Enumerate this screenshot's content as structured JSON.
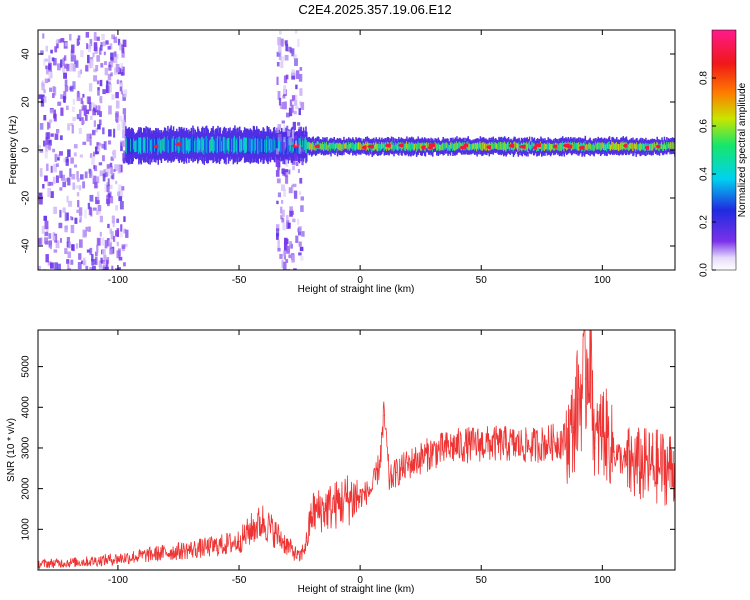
{
  "title": "C2E4.2025.357.19.06.E12",
  "chart_data": [
    {
      "type": "heatmap",
      "xlabel": "Height of straight line (km)",
      "ylabel": "Frequency (Hz)",
      "xlim": [
        -133,
        130
      ],
      "ylim": [
        -50,
        50
      ],
      "xticks": [
        -100,
        -50,
        0,
        50,
        100
      ],
      "yticks": [
        -40,
        -20,
        0,
        20,
        40
      ],
      "colorbar": {
        "label": "Normalized spectral amplitude",
        "ticks": [
          "0.0",
          "0.2",
          "0.4",
          "0.6",
          "0.8"
        ],
        "tick_values": [
          0.0,
          0.2,
          0.4,
          0.6,
          0.8
        ],
        "range": [
          0,
          1
        ],
        "colormap": "rainbow: white-violet-blue-cyan-green-yellow-red-magenta"
      },
      "bands": [
        {
          "x": [
            -133,
            -97
          ],
          "freq_center": 0,
          "freq_halfwidth": 50,
          "amplitude": 0.05,
          "note": "diffuse noise"
        },
        {
          "x": [
            -97,
            -22
          ],
          "freq_center": 2,
          "freq_halfwidth": 6,
          "amplitude": 0.35
        },
        {
          "x": [
            -35,
            -24
          ],
          "freq_center": 0,
          "freq_halfwidth": 50,
          "amplitude": 0.05
        },
        {
          "x": [
            -22,
            130
          ],
          "freq_center": 1.5,
          "freq_halfwidth": 3,
          "amplitude": 0.55
        }
      ]
    },
    {
      "type": "line",
      "xlabel": "Height of straight line (km)",
      "ylabel": "SNR (10 * v/v)",
      "xlim": [
        -133,
        130
      ],
      "ylim": [
        0,
        5900
      ],
      "xticks": [
        -100,
        -50,
        0,
        50,
        100
      ],
      "yticks": [
        1000,
        2000,
        3000,
        4000,
        5000
      ],
      "color": "#ee3333",
      "series": [
        {
          "x": [
            -133,
            -120,
            -110,
            -100,
            -90,
            -80,
            -70,
            -60,
            -50,
            -45,
            -40,
            -35,
            -30,
            -25,
            -22,
            -20,
            -15,
            -10,
            -5,
            0,
            5,
            8,
            10,
            12,
            15,
            20,
            25,
            30,
            40,
            50,
            60,
            70,
            80,
            85,
            88,
            90,
            93,
            95,
            97,
            100,
            105,
            110,
            120,
            130
          ],
          "values": [
            150,
            180,
            220,
            280,
            350,
            430,
            500,
            580,
            700,
            1000,
            1200,
            900,
            600,
            300,
            700,
            1400,
            1500,
            1600,
            1750,
            1800,
            2000,
            2600,
            3800,
            2200,
            2400,
            2600,
            2750,
            2900,
            3050,
            3100,
            3100,
            3050,
            3150,
            3200,
            3500,
            4200,
            4700,
            5800,
            3000,
            3500,
            2900,
            2600,
            2550,
            2500
          ]
        }
      ]
    }
  ]
}
